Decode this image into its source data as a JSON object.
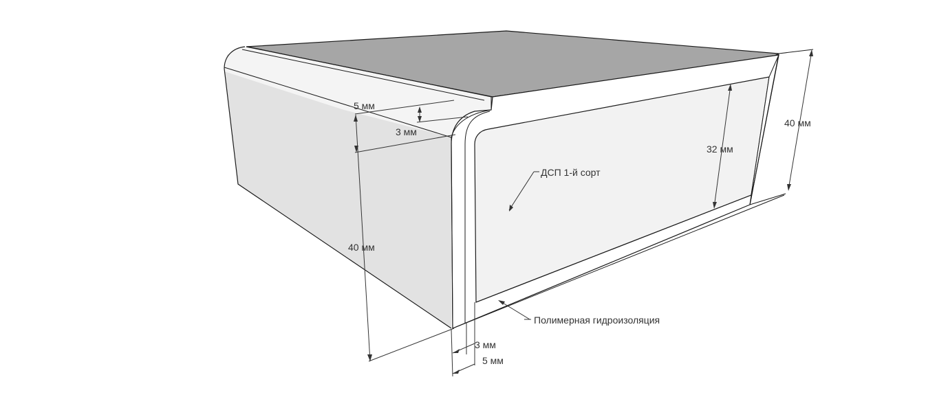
{
  "diagram": {
    "subject": "countertop cross-section",
    "labels": {
      "lip_5mm": "5 мм",
      "lip_3mm": "3 мм",
      "side_40mm": "40 мм",
      "core_32mm": "32 мм",
      "right_40mm": "40 мм",
      "core_material": "ДСП 1-й сорт",
      "coating": "Полимерная гидроизоляция",
      "bottom_3mm": "3 мм",
      "bottom_5mm": "5 мм"
    },
    "colors": {
      "top_surface": "#a6a6a6",
      "side_face": "#e1e1e1",
      "panel": "#f2f2f2",
      "edge_band": "#ffffff",
      "line": "#1a1a1a"
    }
  }
}
